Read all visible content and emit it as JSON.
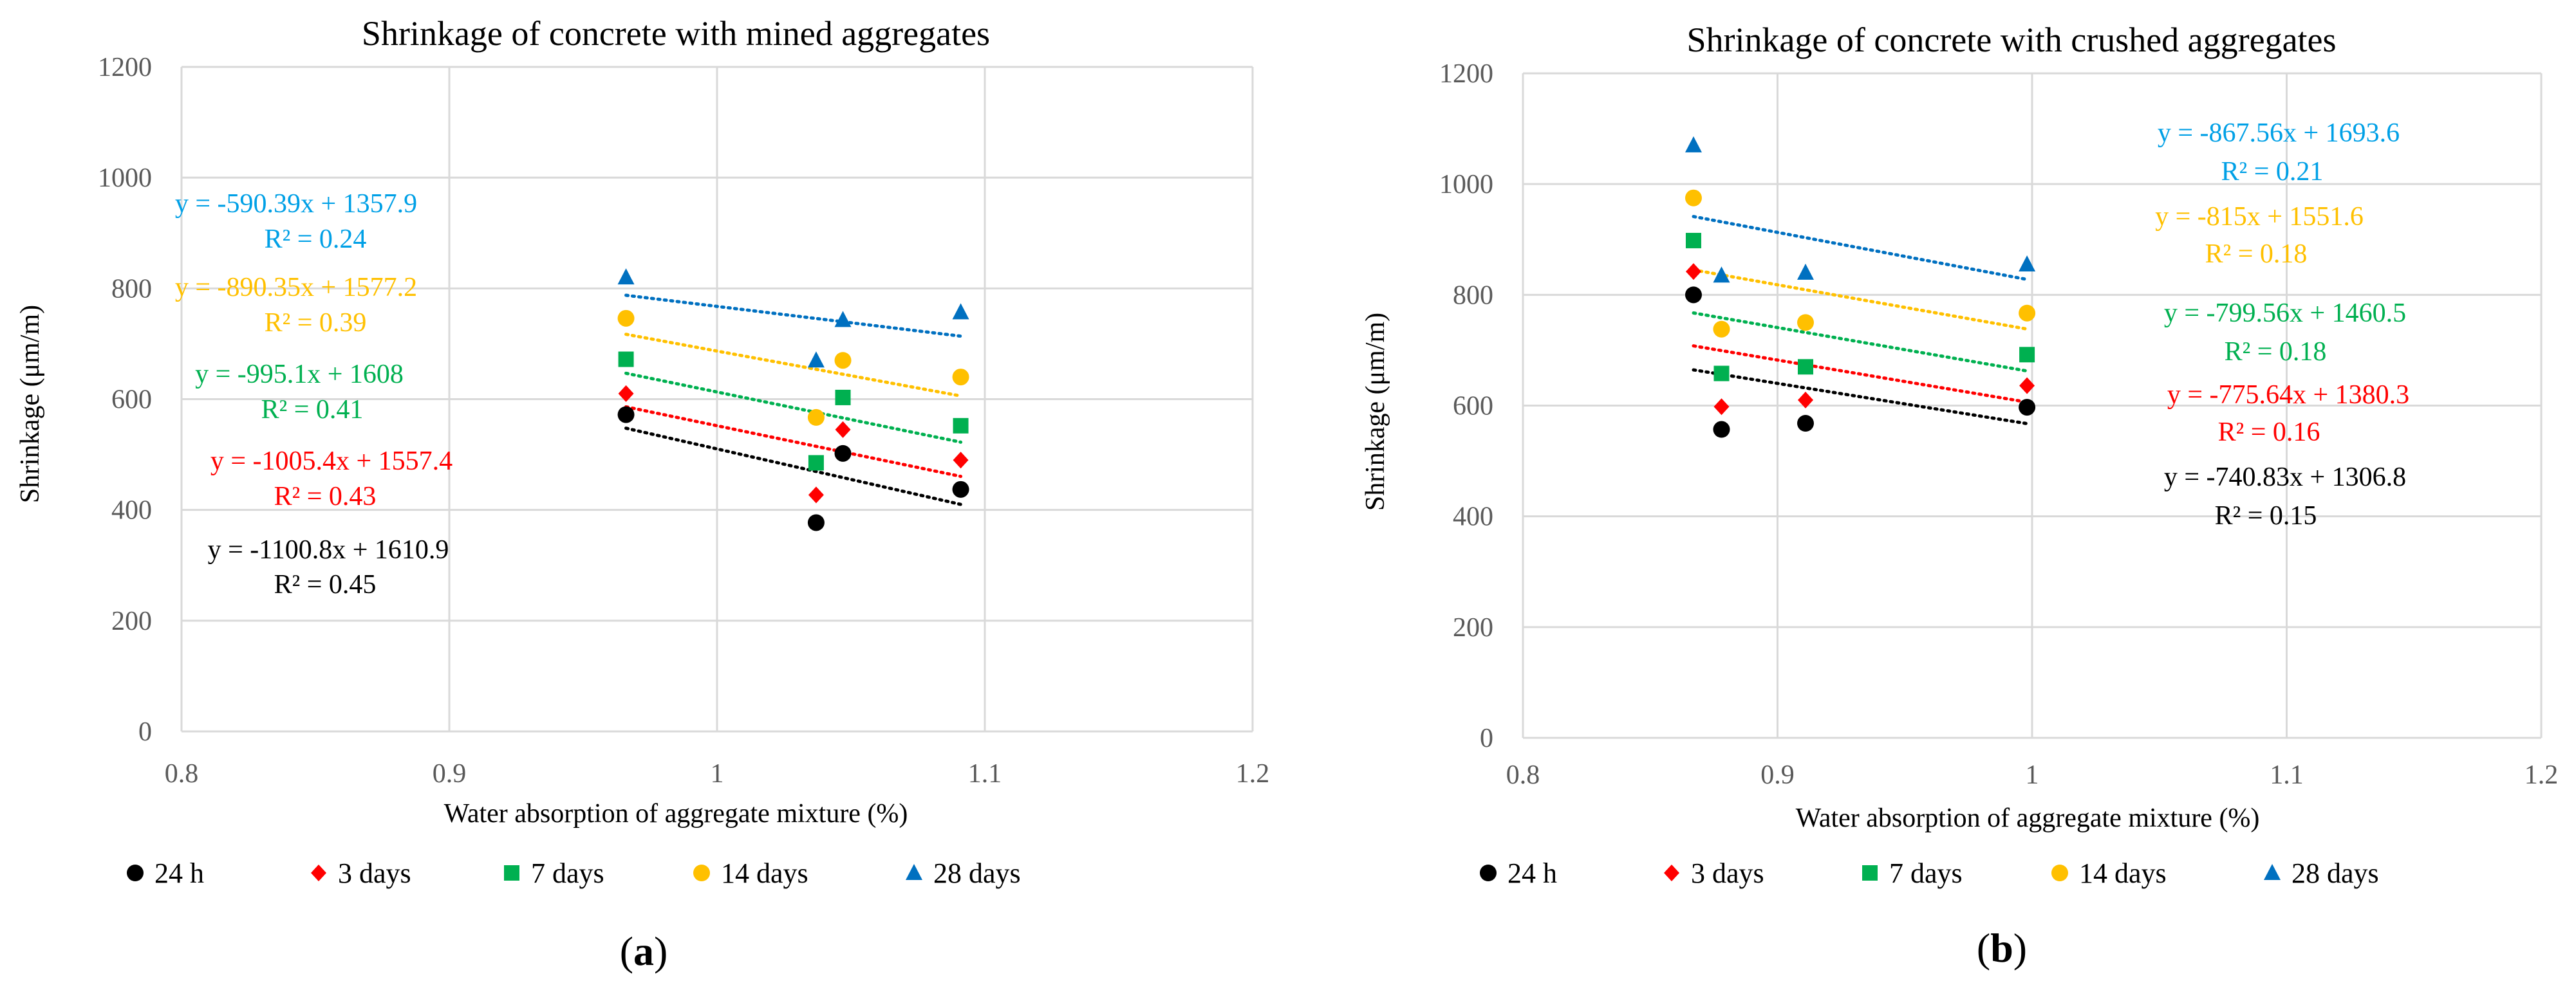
{
  "colors": {
    "24h": "#000000",
    "3d": "#ff0000",
    "7d": "#00b050",
    "14d": "#ffc000",
    "28d": "#0070c0",
    "eq_28d": "#00a0e6",
    "grid": "#d9d9d9",
    "tick_text": "#595959"
  },
  "legend_markers": {
    "24h": "circle",
    "3d": "diamond",
    "7d": "square",
    "14d": "circle",
    "28d": "triangle"
  },
  "chart_data": [
    {
      "type": "scatter",
      "title": "Shrinkage of concrete with mined aggregates",
      "xlabel": "Water absorption of aggregate mixture (%)",
      "ylabel": "Shrinkage (μm/m)",
      "xlim": [
        0.8,
        1.2
      ],
      "ylim": [
        0,
        1200
      ],
      "xticks": [
        "0.8",
        "0.9",
        "1",
        "1.1",
        "1.2"
      ],
      "yticks": [
        "0",
        "200",
        "400",
        "600",
        "800",
        "1000",
        "1200"
      ],
      "panel_label": {
        "open": "(",
        "letter": "a",
        "close": ")"
      },
      "series": [
        {
          "name": "24 h",
          "key": "24h",
          "x": [
            0.966,
            1.037,
            1.047,
            1.091
          ],
          "y": [
            572,
            377,
            502,
            437
          ],
          "trend": {
            "slope": -1100.8,
            "intercept": 1610.9
          },
          "equation": "y = -1100.8x + 1610.9",
          "r2": "R² = 0.45"
        },
        {
          "name": "3 days",
          "key": "3d",
          "x": [
            0.966,
            1.037,
            1.047,
            1.091
          ],
          "y": [
            610,
            427,
            545,
            490
          ],
          "trend": {
            "slope": -1005.4,
            "intercept": 1557.4
          },
          "equation": "y = -1005.4x + 1557.4",
          "r2": "R² = 0.43"
        },
        {
          "name": "7 days",
          "key": "7d",
          "x": [
            0.966,
            1.037,
            1.047,
            1.091
          ],
          "y": [
            672,
            485,
            603,
            552
          ],
          "trend": {
            "slope": -995.1,
            "intercept": 1608
          },
          "equation": "y = -995.1x + 1608",
          "r2": "R² = 0.41"
        },
        {
          "name": "14 days",
          "key": "14d",
          "x": [
            0.966,
            1.037,
            1.047,
            1.091
          ],
          "y": [
            746,
            567,
            670,
            640
          ],
          "trend": {
            "slope": -890.35,
            "intercept": 1577.2
          },
          "equation": "y = -890.35x + 1577.2",
          "r2": "R² = 0.39"
        },
        {
          "name": "28 days",
          "key": "28d",
          "x": [
            0.966,
            1.037,
            1.047,
            1.091
          ],
          "y": [
            820,
            670,
            743,
            757
          ],
          "trend": {
            "slope": -590.39,
            "intercept": 1357.9
          },
          "equation": "y = -590.39x + 1357.9",
          "r2": "R² = 0.24"
        }
      ]
    },
    {
      "type": "scatter",
      "title": "Shrinkage of concrete with crushed aggregates",
      "xlabel": "Water absorption of aggregate mixture (%)",
      "ylabel": "Shrinkage (μm/m)",
      "xlim": [
        0.8,
        1.2
      ],
      "ylim": [
        0,
        1200
      ],
      "xticks": [
        "0.8",
        "0.9",
        "1",
        "1.1",
        "1.2"
      ],
      "yticks": [
        "0",
        "200",
        "400",
        "600",
        "800",
        "1000",
        "1200"
      ],
      "panel_label": {
        "open": "(",
        "letter": "b",
        "close": ")"
      },
      "series": [
        {
          "name": "24 h",
          "key": "24h",
          "x": [
            0.867,
            0.878,
            0.911,
            0.998
          ],
          "y": [
            800,
            557,
            568,
            597
          ],
          "trend": {
            "slope": -740.83,
            "intercept": 1306.8
          },
          "equation": "y = -740.83x + 1306.8",
          "r2": "R² = 0.15"
        },
        {
          "name": "3 days",
          "key": "3d",
          "x": [
            0.867,
            0.878,
            0.911,
            0.998
          ],
          "y": [
            842,
            598,
            610,
            636
          ],
          "trend": {
            "slope": -775.64,
            "intercept": 1380.3
          },
          "equation": "y = -775.64x + 1380.3",
          "r2": "R² = 0.16"
        },
        {
          "name": "7 days",
          "key": "7d",
          "x": [
            0.867,
            0.878,
            0.911,
            0.998
          ],
          "y": [
            898,
            658,
            670,
            692
          ],
          "trend": {
            "slope": -799.56,
            "intercept": 1460.5
          },
          "equation": "y = -799.56x + 1460.5",
          "r2": "R² = 0.18"
        },
        {
          "name": "14 days",
          "key": "14d",
          "x": [
            0.867,
            0.878,
            0.911,
            0.998
          ],
          "y": [
            975,
            738,
            750,
            767
          ],
          "trend": {
            "slope": -815,
            "intercept": 1551.6
          },
          "equation": "y = -815x + 1551.6",
          "r2": "R² = 0.18"
        },
        {
          "name": "28 days",
          "key": "28d",
          "x": [
            0.867,
            0.878,
            0.911,
            0.998
          ],
          "y": [
            1070,
            835,
            840,
            855
          ],
          "trend": {
            "slope": -867.56,
            "intercept": 1693.6
          },
          "equation": "y = -867.56x + 1693.6",
          "r2": "R² = 0.21"
        }
      ]
    }
  ]
}
